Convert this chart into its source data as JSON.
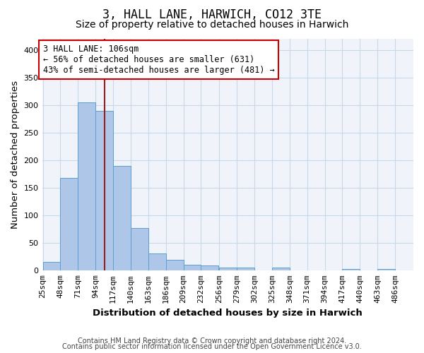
{
  "title": "3, HALL LANE, HARWICH, CO12 3TE",
  "subtitle": "Size of property relative to detached houses in Harwich",
  "xlabel": "Distribution of detached houses by size in Harwich",
  "ylabel": "Number of detached properties",
  "footnote1": "Contains HM Land Registry data © Crown copyright and database right 2024.",
  "footnote2": "Contains public sector information licensed under the Open Government Licence v3.0.",
  "bar_edges": [
    25,
    48,
    71,
    94,
    117,
    140,
    163,
    186,
    209,
    232,
    256,
    279,
    302,
    325,
    348,
    371,
    394,
    417,
    440,
    463,
    486
  ],
  "bar_heights": [
    16,
    168,
    305,
    290,
    190,
    77,
    31,
    19,
    10,
    9,
    5,
    6,
    0,
    5,
    0,
    0,
    0,
    3,
    0,
    3,
    0
  ],
  "bar_color": "#aec6e8",
  "bar_edge_color": "#5a9fd4",
  "property_size": 106,
  "vline_color": "#9b1c1c",
  "annotation_line1": "3 HALL LANE: 106sqm",
  "annotation_line2": "← 56% of detached houses are smaller (631)",
  "annotation_line3": "43% of semi-detached houses are larger (481) →",
  "annotation_box_color": "#ffffff",
  "annotation_box_edge": "#cc0000",
  "ylim": [
    0,
    420
  ],
  "yticks": [
    0,
    50,
    100,
    150,
    200,
    250,
    300,
    350,
    400
  ],
  "plot_bg_color": "#f0f4fa",
  "bg_color": "#ffffff",
  "grid_color": "#c8d8e8",
  "title_fontsize": 12,
  "subtitle_fontsize": 10,
  "axis_label_fontsize": 9.5,
  "tick_fontsize": 8,
  "annotation_fontsize": 8.5,
  "footnote_fontsize": 7
}
